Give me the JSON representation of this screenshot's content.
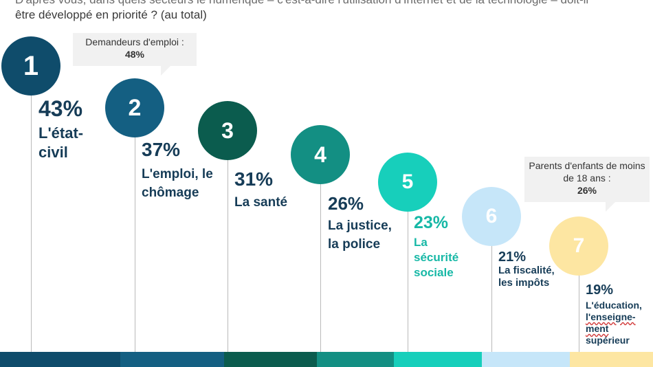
{
  "question": {
    "line1": "D'après vous, dans quels secteurs le numérique – c'est-à-dire l'utilisation d'Internet et de la technologie – doit-il",
    "line2": "être développé en priorité ? (au total)"
  },
  "callouts": [
    {
      "title": "Demandeurs d'emploi :",
      "value": "48%"
    },
    {
      "title": "Parents d'enfants de moins de 18 ans :",
      "value": "26%"
    }
  ],
  "chart_data": {
    "type": "bar",
    "categories": [
      "L'état-civil",
      "L'emploi, le chômage",
      "La santé",
      "La justice, la police",
      "La sécurité sociale",
      "La fiscalité, les impôts",
      "L'éducation, l'enseignement supérieur"
    ],
    "series": [
      {
        "values": [
          43,
          37,
          31,
          26,
          23,
          21,
          19
        ]
      }
    ],
    "items": [
      {
        "rank": "1",
        "pct": "43%",
        "label_lines": [
          "L'état-",
          "civil"
        ],
        "color": "#0f4c6b"
      },
      {
        "rank": "2",
        "pct": "37%",
        "label_lines": [
          "L'emploi, le",
          "chômage"
        ],
        "color": "#145f82"
      },
      {
        "rank": "3",
        "pct": "31%",
        "label_lines": [
          "La santé"
        ],
        "color": "#0b5c4e"
      },
      {
        "rank": "4",
        "pct": "26%",
        "label_lines": [
          "La justice,",
          "la police"
        ],
        "color": "#138f83"
      },
      {
        "rank": "5",
        "pct": "23%",
        "label_lines": [
          "La",
          "sécurité",
          "sociale"
        ],
        "color": "#17cfbb"
      },
      {
        "rank": "6",
        "pct": "21%",
        "label_lines": [
          "La fiscalité,",
          "les impôts"
        ],
        "color": "#c6e6f9"
      },
      {
        "rank": "7",
        "pct": "19%",
        "label_lines": [
          "L'éducation,",
          "l'enseigne-",
          "ment",
          "supérieur"
        ],
        "color": "#fde6a2"
      }
    ],
    "text_colors": {
      "dark": "#163c57",
      "teal": "#17b8a6"
    },
    "xlabel": "",
    "ylabel": "",
    "ylim": [
      0,
      50
    ],
    "legend": "none",
    "grid": false
  }
}
